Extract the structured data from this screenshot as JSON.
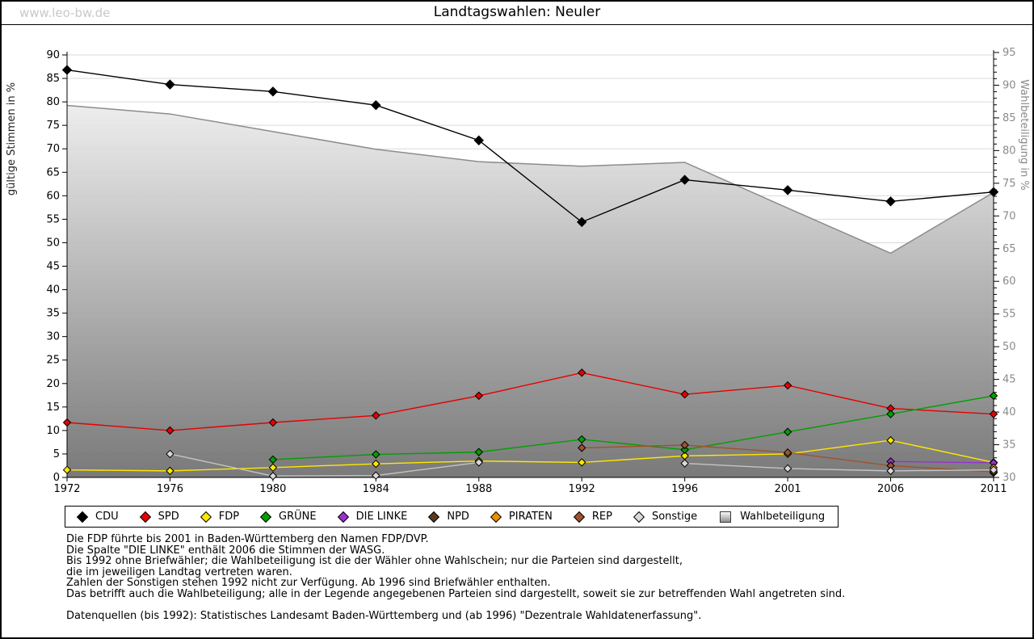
{
  "watermark": "www.leo-bw.de",
  "title": "Landtagswahlen: Neuler",
  "chart_data": {
    "type": "line",
    "x_categories": [
      "1972",
      "1976",
      "1980",
      "1984",
      "1988",
      "1992",
      "1996",
      "2001",
      "2006",
      "2011"
    ],
    "left_axis": {
      "label": "gültige Stimmen in %",
      "min": 0,
      "max": 90,
      "tick_step": 5
    },
    "right_axis": {
      "label": "Wahlbeteiligung in %",
      "min": 30,
      "max": 95,
      "tick_step": 5
    },
    "grid": true,
    "legend_position": "bottom",
    "series": [
      {
        "name": "CDU",
        "color": "#000000",
        "values": [
          86.8,
          83.7,
          82.2,
          79.3,
          71.8,
          54.4,
          63.4,
          61.2,
          58.8,
          60.8
        ]
      },
      {
        "name": "SPD",
        "color": "#e60000",
        "values": [
          11.7,
          10.0,
          11.7,
          13.2,
          17.4,
          22.3,
          17.7,
          19.6,
          14.7,
          13.5
        ]
      },
      {
        "name": "FDP",
        "color": "#ffe800",
        "values": [
          1.6,
          1.4,
          2.1,
          2.9,
          3.5,
          3.2,
          4.6,
          5.0,
          7.9,
          3.2
        ]
      },
      {
        "name": "GRÜNE",
        "color": "#00a000",
        "values": [
          null,
          null,
          3.8,
          4.9,
          5.4,
          8.1,
          5.9,
          9.7,
          13.5,
          17.4
        ]
      },
      {
        "name": "DIE LINKE",
        "color": "#9933cc",
        "values": [
          null,
          null,
          null,
          null,
          null,
          null,
          null,
          null,
          3.4,
          3.1
        ]
      },
      {
        "name": "NPD",
        "color": "#5a3a1e",
        "values": [
          null,
          null,
          null,
          null,
          null,
          null,
          null,
          null,
          null,
          1.0
        ]
      },
      {
        "name": "PIRATEN",
        "color": "#ef8e00",
        "values": [
          null,
          null,
          null,
          null,
          null,
          null,
          null,
          null,
          null,
          2.1
        ]
      },
      {
        "name": "REP",
        "color": "#a0522d",
        "values": [
          null,
          null,
          null,
          null,
          null,
          6.3,
          6.9,
          5.3,
          2.5,
          1.2
        ]
      },
      {
        "name": "Sonstige",
        "color": "#d9d9d9",
        "line_color": "#c4c4c4",
        "values": [
          null,
          5.0,
          0.3,
          0.4,
          3.2,
          null,
          3.0,
          1.9,
          1.4,
          1.6
        ]
      }
    ],
    "turnout": {
      "name": "Wahlbeteiligung",
      "axis": "right",
      "line_color": "#8c8c8c",
      "fill_top": "#ffffff",
      "fill_bottom": "#6e6e6e",
      "values": [
        86.9,
        85.6,
        82.9,
        80.2,
        78.3,
        77.6,
        78.2,
        71.2,
        64.3,
        73.6
      ]
    }
  },
  "notes": [
    "Die FDP führte bis 2001 in Baden-Württemberg den Namen FDP/DVP.",
    "Die Spalte \"DIE LINKE\" enthält 2006 die Stimmen der WASG.",
    "Bis 1992 ohne Briefwähler; die Wahlbeteiligung ist die der Wähler ohne Wahlschein; nur die Parteien sind dargestellt,",
    "die im jeweiligen Landtag vertreten waren.",
    "Zahlen der Sonstigen stehen 1992 nicht zur Verfügung. Ab 1996 sind Briefwähler enthalten.",
    "Das betrifft auch die Wahlbeteiligung; alle in der Legende angegebenen Parteien sind dargestellt, soweit sie zur betreffenden Wahl angetreten sind."
  ],
  "source": "Datenquellen (bis 1992): Statistisches Landesamt Baden-Württemberg und (ab 1996) \"Dezentrale Wahldatenerfassung\"."
}
